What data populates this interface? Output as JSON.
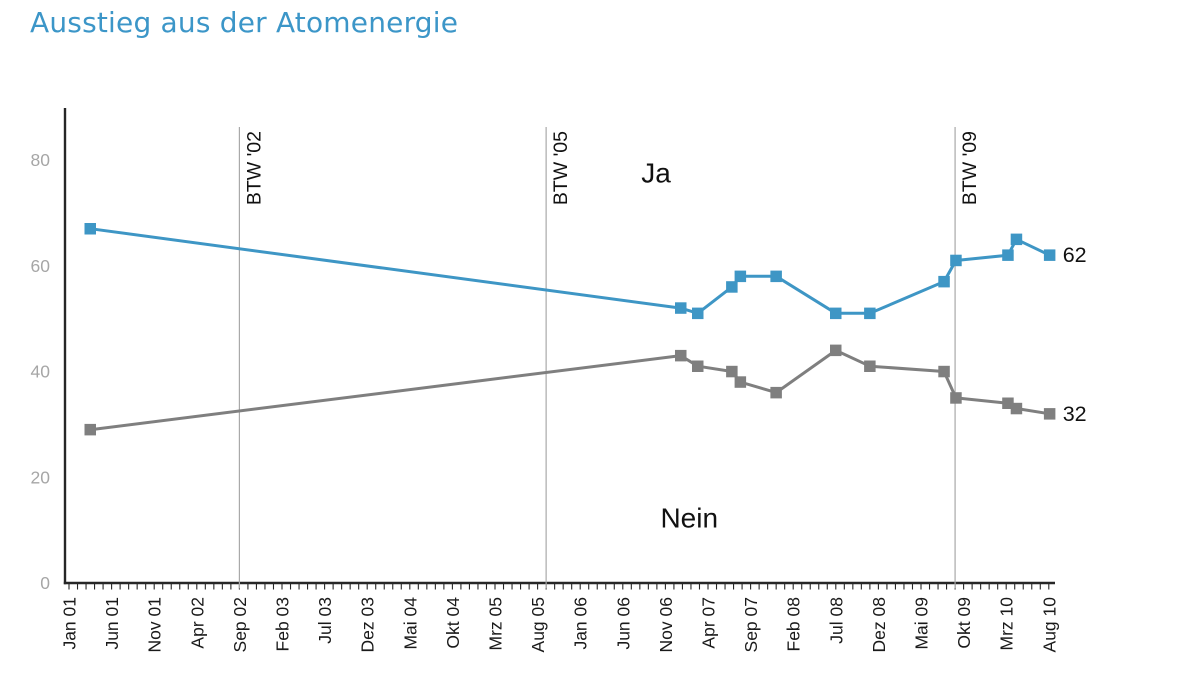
{
  "page": {
    "background": "#ffffff"
  },
  "chart_data": {
    "type": "line",
    "title": "Ausstieg aus der Atomenergie",
    "xlabel": "",
    "ylabel": "",
    "grid": false,
    "legend_position": "inline-annotations",
    "ylim": [
      0,
      87
    ],
    "y_ticks": [
      0,
      20,
      40,
      60,
      80
    ],
    "x_unit": "months since Jan 2001",
    "x_total_months": 116,
    "x_label_step_months": 5,
    "x_tick_labels": [
      "Jan 01",
      "Jun 01",
      "Nov 01",
      "Apr 02",
      "Sep 02",
      "Feb 03",
      "Jul 03",
      "Dez 03",
      "Mai 04",
      "Okt 04",
      "Mrz 05",
      "Aug 05",
      "Jan 06",
      "Jun 06",
      "Nov 06",
      "Apr 07",
      "Sep 07",
      "Feb 08",
      "Jul 08",
      "Dez 08",
      "Mai 09",
      "Okt 09",
      "Mrz 10",
      "Aug 10"
    ],
    "events": [
      {
        "label": "BTW '02",
        "month": 20
      },
      {
        "label": "BTW '05",
        "month": 56
      },
      {
        "label": "BTW '09",
        "month": 104
      }
    ],
    "annotations": [
      {
        "text": "Ja",
        "month": 68.9,
        "value": 77.5
      },
      {
        "text": "Nein",
        "month": 72.8,
        "value": 12.3
      }
    ],
    "series": [
      {
        "name": "Ja",
        "color": "#3E96C5",
        "end_label": "62",
        "points": [
          {
            "date": "Mrz 01",
            "month": 2.5,
            "value": 67
          },
          {
            "date": "Jan 07",
            "month": 71.8,
            "value": 52
          },
          {
            "date": "Mrz 07",
            "month": 73.8,
            "value": 51
          },
          {
            "date": "Jul 07",
            "month": 77.8,
            "value": 56
          },
          {
            "date": "Aug 07",
            "month": 78.8,
            "value": 58
          },
          {
            "date": "Dez 07",
            "month": 83,
            "value": 58
          },
          {
            "date": "Jul 08",
            "month": 90,
            "value": 51
          },
          {
            "date": "Nov 08",
            "month": 94,
            "value": 51
          },
          {
            "date": "Aug 09",
            "month": 102.7,
            "value": 57
          },
          {
            "date": "Sep 09",
            "month": 104.1,
            "value": 61
          },
          {
            "date": "Mrz 10",
            "month": 110.2,
            "value": 62
          },
          {
            "date": "Apr 10",
            "month": 111.2,
            "value": 65
          },
          {
            "date": "Aug 10",
            "month": 115.1,
            "value": 62
          }
        ]
      },
      {
        "name": "Nein",
        "color": "#7F7F7F",
        "end_label": "32",
        "points": [
          {
            "date": "Mrz 01",
            "month": 2.5,
            "value": 29
          },
          {
            "date": "Jan 07",
            "month": 71.8,
            "value": 43
          },
          {
            "date": "Mrz 07",
            "month": 73.8,
            "value": 41
          },
          {
            "date": "Jul 07",
            "month": 77.8,
            "value": 40
          },
          {
            "date": "Aug 07",
            "month": 78.8,
            "value": 38
          },
          {
            "date": "Dez 07",
            "month": 83,
            "value": 36
          },
          {
            "date": "Jul 08",
            "month": 90,
            "value": 44
          },
          {
            "date": "Nov 08",
            "month": 94,
            "value": 41
          },
          {
            "date": "Aug 09",
            "month": 102.7,
            "value": 40
          },
          {
            "date": "Sep 09",
            "month": 104.1,
            "value": 35
          },
          {
            "date": "Mrz 10",
            "month": 110.2,
            "value": 34
          },
          {
            "date": "Apr 10",
            "month": 111.2,
            "value": 33
          },
          {
            "date": "Aug 10",
            "month": 115.1,
            "value": 32
          }
        ]
      }
    ],
    "colors": {
      "title": "#3C96C8",
      "axis": "#262626",
      "x_tick_label": "#1a1a1a",
      "y_tick_label": "#a6a6a6",
      "event_line": "#a9a9a9",
      "event_label": "#111111",
      "annotation": "#111111",
      "end_label": "#111111"
    }
  }
}
